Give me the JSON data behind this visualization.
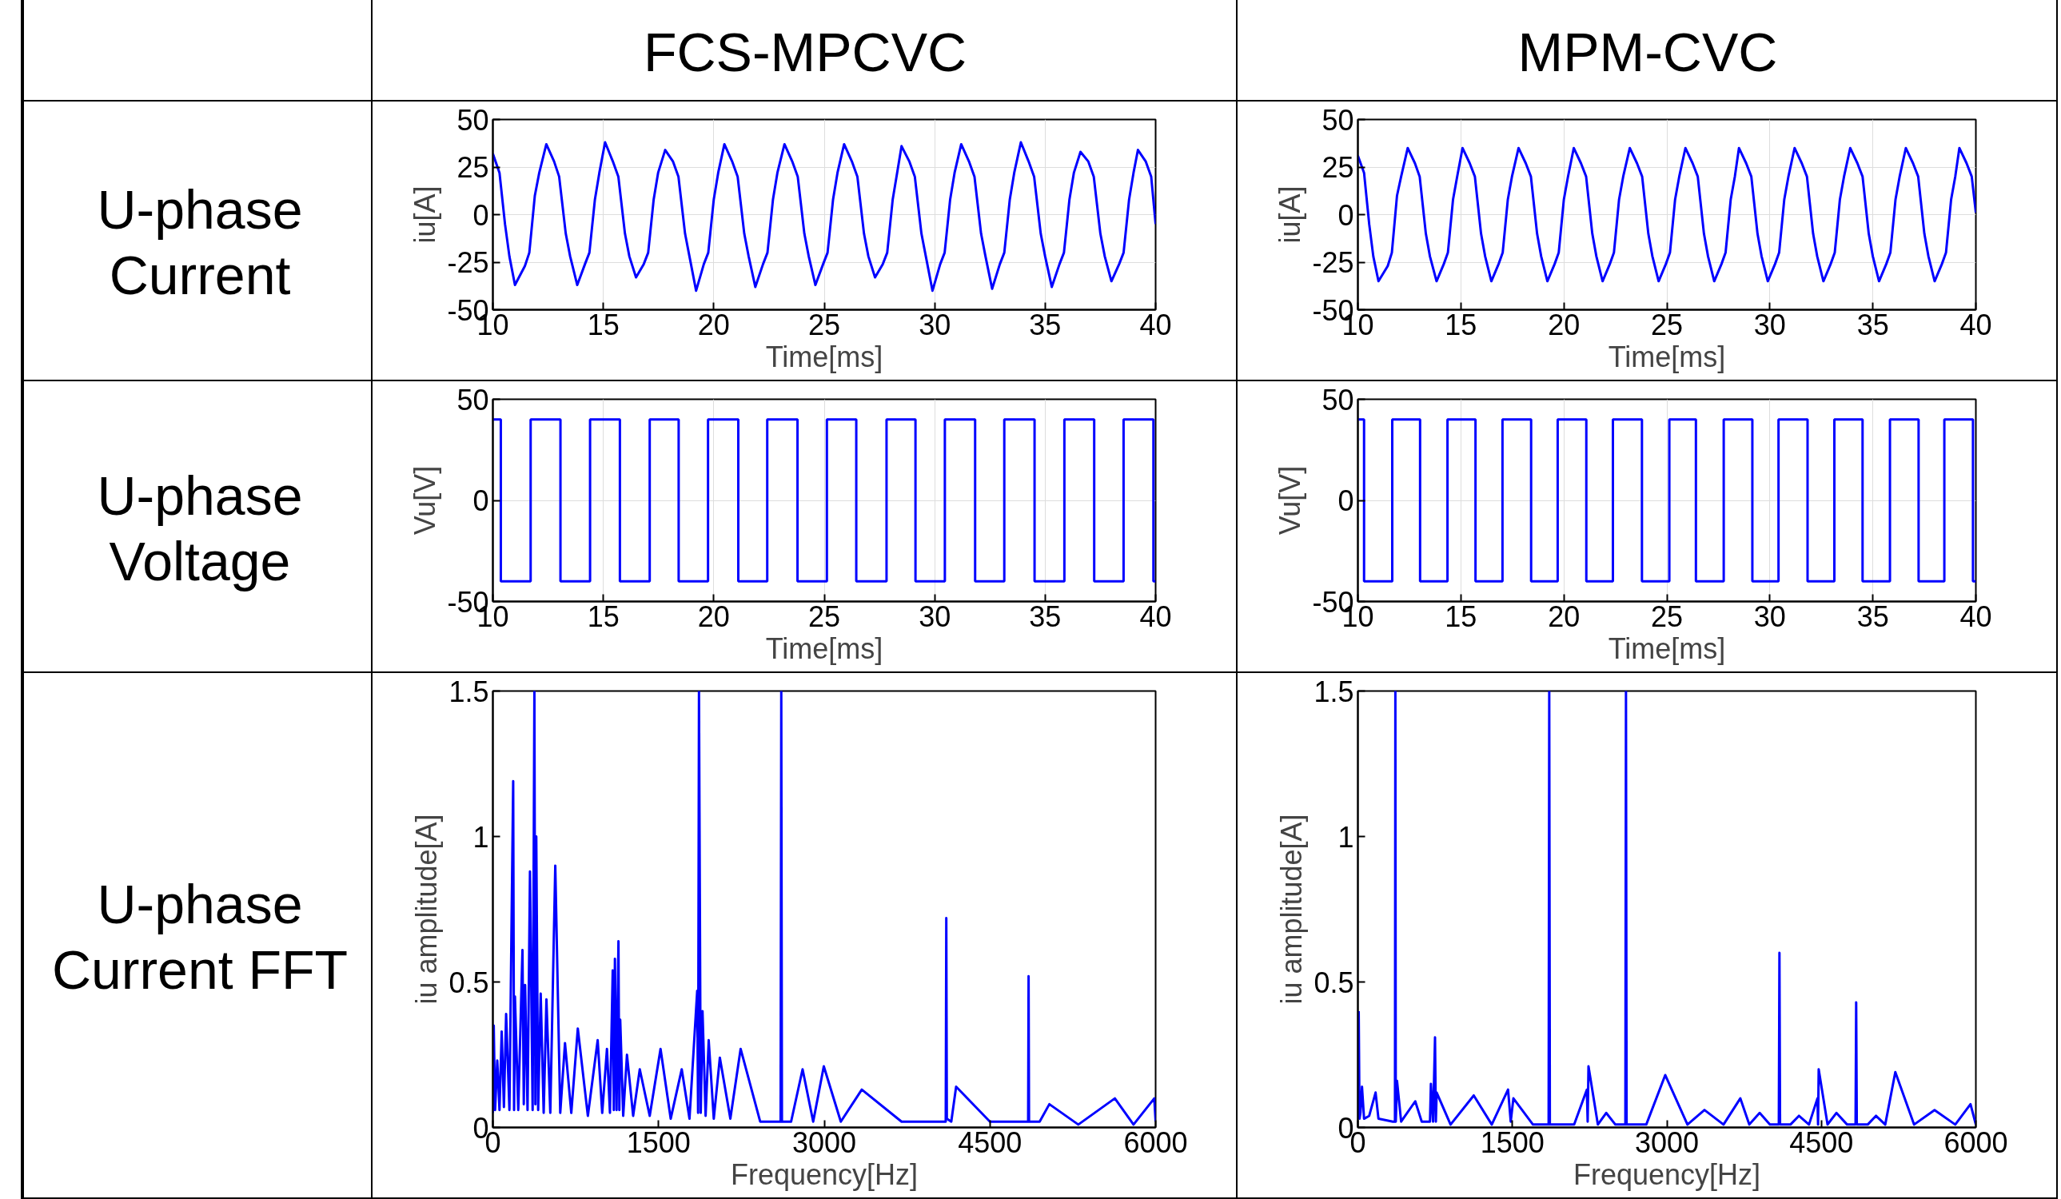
{
  "chart_data": [
    {
      "type": "line",
      "title": "FCS-MPCVC",
      "annotations": [
        "U-phase Current"
      ],
      "xlabel": "Time[ms]",
      "ylabel": "iu[A]",
      "xlim": [
        10,
        40
      ],
      "ylim": [
        -50,
        50
      ],
      "xticks": [
        10,
        15,
        20,
        25,
        30,
        35,
        40
      ],
      "yticks": [
        -50,
        -25,
        0,
        25,
        50
      ],
      "grid": true,
      "series": [
        {
          "color": "#0000ff",
          "x": [
            10,
            10.3,
            10.55,
            10.75,
            11.0,
            11.45,
            11.65,
            11.9,
            12.1,
            12.42,
            12.77,
            13.0,
            13.3,
            13.5,
            13.82,
            14.17,
            14.37,
            14.62,
            14.82,
            15.08,
            15.43,
            15.68,
            15.98,
            16.18,
            16.48,
            16.83,
            17.03,
            17.28,
            17.48,
            17.8,
            18.15,
            18.4,
            18.7,
            18.9,
            19.2,
            19.55,
            19.75,
            20.0,
            20.2,
            20.48,
            20.83,
            21.08,
            21.38,
            21.58,
            21.88,
            22.23,
            22.43,
            22.68,
            22.88,
            23.2,
            23.55,
            23.8,
            24.1,
            24.3,
            24.6,
            24.95,
            25.15,
            25.4,
            25.6,
            25.9,
            26.25,
            26.5,
            26.8,
            27.0,
            27.3,
            27.65,
            27.85,
            28.1,
            28.3,
            28.5,
            28.85,
            29.1,
            29.4,
            29.6,
            29.9,
            30.25,
            30.45,
            30.7,
            30.9,
            31.2,
            31.55,
            31.8,
            32.1,
            32.3,
            32.6,
            32.95,
            33.15,
            33.4,
            33.6,
            33.9,
            34.25,
            34.5,
            34.8,
            35.0,
            35.3,
            35.65,
            35.85,
            36.1,
            36.3,
            36.6,
            36.95,
            37.2,
            37.5,
            37.7,
            38.0,
            38.35,
            38.55,
            38.8,
            39.0,
            39.2,
            39.55,
            39.8,
            40
          ],
          "values": [
            32,
            22,
            -5,
            -22,
            -37,
            -27,
            -20,
            10,
            22,
            37,
            28,
            20,
            -10,
            -22,
            -37,
            -26,
            -20,
            8,
            22,
            38,
            28,
            20,
            -10,
            -22,
            -33,
            -26,
            -20,
            8,
            22,
            34,
            28,
            20,
            -10,
            -22,
            -40,
            -26,
            -20,
            8,
            22,
            37,
            28,
            20,
            -10,
            -22,
            -38,
            -26,
            -20,
            8,
            22,
            37,
            28,
            20,
            -10,
            -22,
            -37,
            -26,
            -20,
            8,
            22,
            37,
            28,
            20,
            -10,
            -22,
            -33,
            -26,
            -20,
            8,
            22,
            36,
            28,
            20,
            -10,
            -22,
            -40,
            -26,
            -20,
            8,
            22,
            37,
            28,
            20,
            -10,
            -22,
            -39,
            -26,
            -20,
            8,
            22,
            38,
            28,
            20,
            -10,
            -22,
            -38,
            -26,
            -20,
            8,
            22,
            33,
            28,
            20,
            -10,
            -22,
            -35,
            -26,
            -20,
            8,
            22,
            34,
            28,
            20,
            -5
          ]
        }
      ]
    },
    {
      "type": "line",
      "title": "MPM-CVC",
      "xlabel": "Time[ms]",
      "ylabel": "iu[A]",
      "xlim": [
        10,
        40
      ],
      "ylim": [
        -50,
        50
      ],
      "xticks": [
        10,
        15,
        20,
        25,
        30,
        35,
        40
      ],
      "yticks": [
        -50,
        -25,
        0,
        25,
        50
      ],
      "grid": true,
      "series": [
        {
          "color": "#0000ff",
          "x": [
            10,
            10.3,
            10.55,
            10.75,
            11.0,
            11.45,
            11.65,
            11.9,
            12.1,
            12.42,
            12.77,
            13.0,
            13.3,
            13.5,
            13.82,
            14.17,
            14.37,
            14.62,
            14.82,
            15.08,
            15.43,
            15.68,
            15.98,
            16.18,
            16.48,
            16.83,
            17.03,
            17.28,
            17.48,
            17.8,
            18.15,
            18.4,
            18.7,
            18.9,
            19.2,
            19.55,
            19.75,
            20.0,
            20.2,
            20.48,
            20.83,
            21.08,
            21.38,
            21.58,
            21.88,
            22.23,
            22.43,
            22.68,
            22.88,
            23.2,
            23.55,
            23.8,
            24.1,
            24.3,
            24.6,
            24.95,
            25.15,
            25.4,
            25.6,
            25.9,
            26.25,
            26.5,
            26.8,
            27.0,
            27.3,
            27.65,
            27.85,
            28.1,
            28.3,
            28.5,
            28.85,
            29.1,
            29.4,
            29.6,
            29.9,
            30.25,
            30.45,
            30.7,
            30.9,
            31.2,
            31.55,
            31.8,
            32.1,
            32.3,
            32.6,
            32.95,
            33.15,
            33.4,
            33.6,
            33.9,
            34.25,
            34.5,
            34.8,
            35.0,
            35.3,
            35.65,
            35.85,
            36.1,
            36.3,
            36.6,
            36.95,
            37.2,
            37.5,
            37.7,
            38.0,
            38.35,
            38.55,
            38.8,
            39.0,
            39.2,
            39.55,
            39.8,
            40
          ],
          "values": [
            31,
            22,
            -5,
            -22,
            -35,
            -27,
            -20,
            10,
            20,
            35,
            27,
            20,
            -10,
            -22,
            -35,
            -26,
            -20,
            8,
            20,
            35,
            27,
            20,
            -10,
            -22,
            -35,
            -26,
            -20,
            8,
            20,
            35,
            27,
            20,
            -10,
            -22,
            -35,
            -26,
            -20,
            8,
            20,
            35,
            27,
            20,
            -10,
            -22,
            -35,
            -26,
            -20,
            8,
            20,
            35,
            27,
            20,
            -10,
            -22,
            -35,
            -26,
            -20,
            8,
            20,
            35,
            27,
            20,
            -10,
            -22,
            -35,
            -26,
            -20,
            8,
            20,
            35,
            27,
            20,
            -10,
            -22,
            -35,
            -26,
            -20,
            8,
            20,
            35,
            27,
            20,
            -10,
            -22,
            -35,
            -26,
            -20,
            8,
            20,
            35,
            27,
            20,
            -10,
            -22,
            -35,
            -26,
            -20,
            8,
            20,
            35,
            27,
            20,
            -10,
            -22,
            -35,
            -26,
            -20,
            8,
            20,
            35,
            27,
            20,
            1
          ]
        }
      ]
    },
    {
      "type": "step",
      "annotations": [
        "U-phase Voltage"
      ],
      "xlabel": "Time[ms]",
      "ylabel": "Vu[V]",
      "xlim": [
        10,
        40
      ],
      "ylim": [
        -50,
        50
      ],
      "xticks": [
        10,
        15,
        20,
        25,
        30,
        35,
        40
      ],
      "yticks": [
        -50,
        0,
        50
      ],
      "grid": true,
      "series": [
        {
          "color": "#0000ff",
          "x": [
            10,
            10.36,
            11.71,
            13.06,
            14.4,
            15.75,
            17.1,
            18.41,
            19.74,
            21.11,
            22.42,
            23.79,
            25.12,
            26.45,
            27.82,
            29.13,
            30.46,
            31.83,
            33.15,
            34.52,
            35.87,
            37.22,
            38.55,
            39.9,
            40
          ],
          "values": [
            40,
            -40,
            40,
            -40,
            40,
            -40,
            40,
            -40,
            40,
            -40,
            40,
            -40,
            40,
            -40,
            40,
            -40,
            40,
            -40,
            40,
            -40,
            40,
            -40,
            40,
            -40,
            -40
          ]
        }
      ]
    },
    {
      "type": "step",
      "xlabel": "Time[ms]",
      "ylabel": "Vu[V]",
      "xlim": [
        10,
        40
      ],
      "ylim": [
        -50,
        50
      ],
      "xticks": [
        10,
        15,
        20,
        25,
        30,
        35,
        40
      ],
      "yticks": [
        -50,
        0,
        50
      ],
      "grid": true,
      "series": [
        {
          "color": "#0000ff",
          "x": [
            10,
            10.3,
            11.67,
            13.02,
            14.35,
            15.71,
            17.02,
            18.41,
            19.7,
            21.09,
            22.38,
            23.79,
            25.12,
            26.41,
            27.76,
            29.15,
            30.42,
            31.83,
            33.13,
            34.5,
            35.83,
            37.22,
            38.47,
            39.86,
            40
          ],
          "values": [
            40,
            -40,
            40,
            -40,
            40,
            -40,
            40,
            -40,
            40,
            -40,
            40,
            -40,
            40,
            -40,
            40,
            -40,
            40,
            -40,
            40,
            -40,
            40,
            -40,
            40,
            -40,
            -40
          ]
        }
      ]
    },
    {
      "type": "line",
      "annotations": [
        "U-phase Current FFT"
      ],
      "xlabel": "Frequency[Hz]",
      "ylabel": "iu amplitude[A]",
      "xlim": [
        0,
        6000
      ],
      "ylim": [
        0,
        1.5
      ],
      "xticks": [
        0,
        1500,
        3000,
        4500,
        6000
      ],
      "yticks": [
        0,
        0.5,
        1,
        1.5
      ],
      "grid": false,
      "series": [
        {
          "color": "#0000ff",
          "x": [
            0,
            8,
            20,
            40,
            60,
            80,
            100,
            120,
            150,
            184,
            192,
            200,
            230,
            268,
            280,
            292,
            314,
            336,
            360,
            376,
            385,
            393,
            410,
            433,
            460,
            485,
            520,
            565,
            610,
            653,
            710,
            769,
            860,
            949,
            990,
            1033,
            1060,
            1085,
            1095,
            1105,
            1120,
            1137,
            1145,
            1153,
            1180,
            1214,
            1270,
            1330,
            1420,
            1518,
            1610,
            1710,
            1780,
            1850,
            1858,
            1866,
            1882,
            1898,
            1926,
            1954,
            2000,
            2055,
            2150,
            2243,
            2420,
            2605,
            2611,
            2617,
            2700,
            2804,
            2900,
            2996,
            3150,
            3340,
            3700,
            4100,
            4105,
            4110,
            4150,
            4194,
            4500,
            4846,
            4850,
            4854,
            4950,
            5038,
            5300,
            5631,
            5800,
            5988,
            6000
          ],
          "values": [
            0.05,
            0.35,
            0.06,
            0.23,
            0.06,
            0.33,
            0.07,
            0.39,
            0.06,
            1.19,
            0.06,
            0.45,
            0.06,
            0.61,
            0.08,
            0.49,
            0.06,
            0.88,
            0.06,
            1.5,
            0.08,
            1.0,
            0.06,
            0.46,
            0.05,
            0.44,
            0.05,
            0.9,
            0.05,
            0.29,
            0.05,
            0.34,
            0.04,
            0.3,
            0.05,
            0.27,
            0.05,
            0.54,
            0.06,
            0.58,
            0.06,
            0.64,
            0.06,
            0.37,
            0.04,
            0.25,
            0.04,
            0.2,
            0.04,
            0.27,
            0.03,
            0.2,
            0.03,
            0.47,
            0.05,
            1.5,
            0.05,
            0.4,
            0.04,
            0.3,
            0.03,
            0.24,
            0.03,
            0.27,
            0.02,
            0.02,
            1.5,
            0.02,
            0.02,
            0.2,
            0.02,
            0.21,
            0.02,
            0.13,
            0.02,
            0.02,
            0.72,
            0.03,
            0.02,
            0.14,
            0.02,
            0.02,
            0.52,
            0.02,
            0.02,
            0.08,
            0.01,
            0.1,
            0.01,
            0.1,
            0.02
          ]
        }
      ]
    },
    {
      "type": "line",
      "xlabel": "Frequency[Hz]",
      "ylabel": "iu amplitude[A]",
      "xlim": [
        0,
        6000
      ],
      "ylim": [
        0,
        1.5
      ],
      "xticks": [
        0,
        1500,
        3000,
        4500,
        6000
      ],
      "yticks": [
        0,
        0.5,
        1,
        1.5
      ],
      "grid": false,
      "series": [
        {
          "color": "#0000ff",
          "x": [
            8,
            16,
            25,
            40,
            60,
            110,
            172,
            200,
            340,
            360,
            364,
            368,
            380,
            420,
            557,
            620,
            700,
            709,
            730,
            749,
            757,
            765,
            900,
            1125,
            1300,
            1458,
            1484,
            1510,
            1700,
            1852,
            1858,
            1864,
            2100,
            2223,
            2231,
            2239,
            2330,
            2411,
            2500,
            2597,
            2603,
            2609,
            2800,
            2984,
            3200,
            3365,
            3550,
            3713,
            3800,
            3901,
            4000,
            4087,
            4093,
            4099,
            4200,
            4282,
            4380,
            4462,
            4468,
            4474,
            4560,
            4646,
            4750,
            4832,
            4838,
            4844,
            4950,
            5030,
            5120,
            5218,
            5400,
            5599,
            5800,
            5948,
            6000
          ],
          "values": [
            0.4,
            0.03,
            0.05,
            0.14,
            0.03,
            0.04,
            0.12,
            0.03,
            0.02,
            0.02,
            1.5,
            0.02,
            0.16,
            0.02,
            0.09,
            0.02,
            0.02,
            0.15,
            0.02,
            0.31,
            0.02,
            0.12,
            0.01,
            0.11,
            0.01,
            0.13,
            0.02,
            0.1,
            0.01,
            0.01,
            1.5,
            0.01,
            0.01,
            0.13,
            0.02,
            0.21,
            0.01,
            0.05,
            0.01,
            0.01,
            1.5,
            0.01,
            0.01,
            0.18,
            0.01,
            0.06,
            0.01,
            0.1,
            0.01,
            0.05,
            0.01,
            0.01,
            0.6,
            0.01,
            0.01,
            0.04,
            0.01,
            0.1,
            0.01,
            0.2,
            0.01,
            0.05,
            0.01,
            0.01,
            0.43,
            0.01,
            0.01,
            0.04,
            0.01,
            0.19,
            0.01,
            0.06,
            0.01,
            0.08,
            0.01
          ]
        }
      ]
    }
  ]
}
